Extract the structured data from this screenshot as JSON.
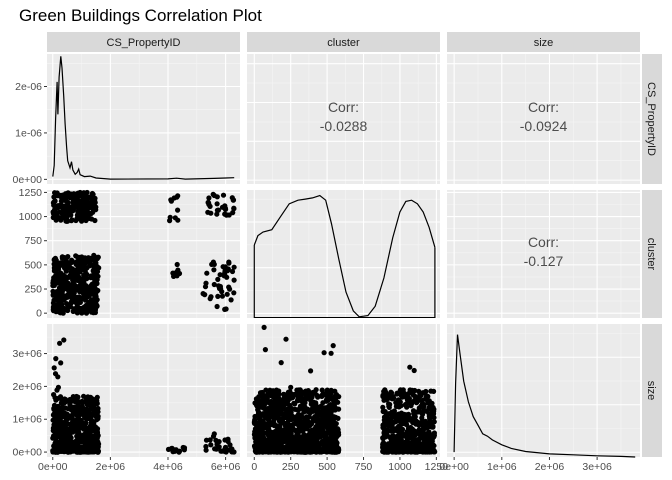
{
  "chart_data": {
    "type": "scatter",
    "title": "Green Buildings Correlation Plot",
    "variables": [
      "CS_PropertyID",
      "cluster",
      "size"
    ],
    "correlations": [
      {
        "row": "CS_PropertyID",
        "col": "cluster",
        "label": "Corr:",
        "value": "-0.0288"
      },
      {
        "row": "CS_PropertyID",
        "col": "size",
        "label": "Corr:",
        "value": "-0.0924"
      },
      {
        "row": "cluster",
        "col": "size",
        "label": "Corr:",
        "value": "-0.127"
      }
    ],
    "axes": {
      "CS_PropertyID": {
        "range": [
          -200000,
          6500000
        ],
        "ticks": [
          0,
          2000000,
          4000000,
          6000000
        ],
        "tick_labels": [
          "0e+00",
          "2e+06",
          "4e+06",
          "6e+06"
        ]
      },
      "cluster": {
        "range": [
          -50,
          1275
        ],
        "ticks": [
          0,
          250,
          500,
          750,
          1000,
          1250
        ],
        "tick_labels": [
          "0",
          "250",
          "500",
          "750",
          "1000",
          "1250"
        ]
      },
      "size": {
        "range": [
          -150000,
          3900000
        ],
        "ticks": [
          0,
          1000000,
          2000000,
          3000000
        ],
        "tick_labels": [
          "0e+00",
          "1e+06",
          "2e+06",
          "3e+06"
        ]
      }
    },
    "density_axis": {
      "range": [
        -1000000,
        27000000
      ],
      "ticks": [
        0,
        10000000,
        20000000
      ],
      "tick_labels": [
        "0e+00",
        "1e-06",
        "2e-06"
      ]
    },
    "densities": {
      "CS_PropertyID": [
        [
          0,
          0.6
        ],
        [
          50000,
          3
        ],
        [
          100000,
          13
        ],
        [
          150000,
          21
        ],
        [
          180000,
          14
        ],
        [
          220000,
          22
        ],
        [
          280000,
          26.5
        ],
        [
          320000,
          24
        ],
        [
          380000,
          18
        ],
        [
          430000,
          12
        ],
        [
          480000,
          7
        ],
        [
          520000,
          4
        ],
        [
          600000,
          2.5
        ],
        [
          650000,
          3.8
        ],
        [
          700000,
          2
        ],
        [
          780000,
          1.1
        ],
        [
          850000,
          1.5
        ],
        [
          900000,
          2.2
        ],
        [
          950000,
          1
        ],
        [
          1100000,
          0.6
        ],
        [
          1300000,
          0.7
        ],
        [
          1500000,
          0.3
        ],
        [
          2000000,
          0.05
        ],
        [
          4000000,
          0.1
        ],
        [
          4300000,
          0.25
        ],
        [
          4600000,
          0.05
        ],
        [
          5600000,
          0.2
        ],
        [
          6000000,
          0.3
        ],
        [
          6300000,
          0.35
        ]
      ],
      "cluster": [
        [
          0,
          0.62
        ],
        [
          25,
          0.7
        ],
        [
          60,
          0.73
        ],
        [
          120,
          0.75
        ],
        [
          180,
          0.86
        ],
        [
          240,
          0.97
        ],
        [
          300,
          1.0
        ],
        [
          350,
          1.01
        ],
        [
          400,
          1.02
        ],
        [
          450,
          1.04
        ],
        [
          490,
          1.0
        ],
        [
          530,
          0.8
        ],
        [
          580,
          0.5
        ],
        [
          630,
          0.22
        ],
        [
          680,
          0.06
        ],
        [
          720,
          0.01
        ],
        [
          780,
          0.02
        ],
        [
          830,
          0.1
        ],
        [
          890,
          0.34
        ],
        [
          950,
          0.68
        ],
        [
          1000,
          0.9
        ],
        [
          1040,
          0.99
        ],
        [
          1080,
          1.0
        ],
        [
          1120,
          0.97
        ],
        [
          1160,
          0.9
        ],
        [
          1200,
          0.77
        ],
        [
          1240,
          0.6
        ]
      ],
      "size": [
        [
          0,
          0.04
        ],
        [
          30000,
          0.6
        ],
        [
          70000,
          1.0
        ],
        [
          120000,
          0.85
        ],
        [
          200000,
          0.62
        ],
        [
          300000,
          0.45
        ],
        [
          400000,
          0.33
        ],
        [
          500000,
          0.26
        ],
        [
          600000,
          0.19
        ],
        [
          700000,
          0.17
        ],
        [
          800000,
          0.14
        ],
        [
          1000000,
          0.1
        ],
        [
          1200000,
          0.07
        ],
        [
          1500000,
          0.045
        ],
        [
          2000000,
          0.025
        ],
        [
          2500000,
          0.018
        ],
        [
          3000000,
          0.01
        ],
        [
          3500000,
          0.005
        ],
        [
          3800000,
          0.0
        ]
      ]
    },
    "scatter_clusters": [
      {
        "x": [
          0,
          1500000
        ],
        "y": [
          950,
          1250
        ],
        "n": 220
      },
      {
        "x": [
          0,
          1600000
        ],
        "y": [
          0,
          600
        ],
        "n": 420
      },
      {
        "x": [
          4000000,
          4400000
        ],
        "y": [
          950,
          1220
        ],
        "n": 10
      },
      {
        "x": [
          5300000,
          6300000
        ],
        "y": [
          1000,
          1230
        ],
        "n": 30
      },
      {
        "x": [
          4000000,
          4400000
        ],
        "y": [
          380,
          560
        ],
        "n": 7
      },
      {
        "x": [
          5200000,
          6300000
        ],
        "y": [
          30,
          580
        ],
        "n": 45
      },
      {
        "x": [
          0,
          1600000
        ],
        "y": [
          0,
          1700000
        ],
        "n": 560
      },
      {
        "x": [
          0,
          400000
        ],
        "y": [
          1700000,
          3700000
        ],
        "n": 10
      },
      {
        "x": [
          4000000,
          4600000
        ],
        "y": [
          0,
          150000
        ],
        "n": 14
      },
      {
        "x": [
          5300000,
          6300000
        ],
        "y": [
          0,
          600000
        ],
        "n": 30
      },
      {
        "x": [
          0,
          580
        ],
        "y": [
          0,
          1900000
        ],
        "n": 1100
      },
      {
        "x": [
          50,
          560
        ],
        "y": [
          1900000,
          3800000
        ],
        "n": 9
      },
      {
        "x": [
          880,
          1240
        ],
        "y": [
          0,
          1900000
        ],
        "n": 560
      },
      {
        "x": [
          1050,
          1100
        ],
        "y": [
          2400000,
          3500000
        ],
        "n": 2
      }
    ]
  }
}
